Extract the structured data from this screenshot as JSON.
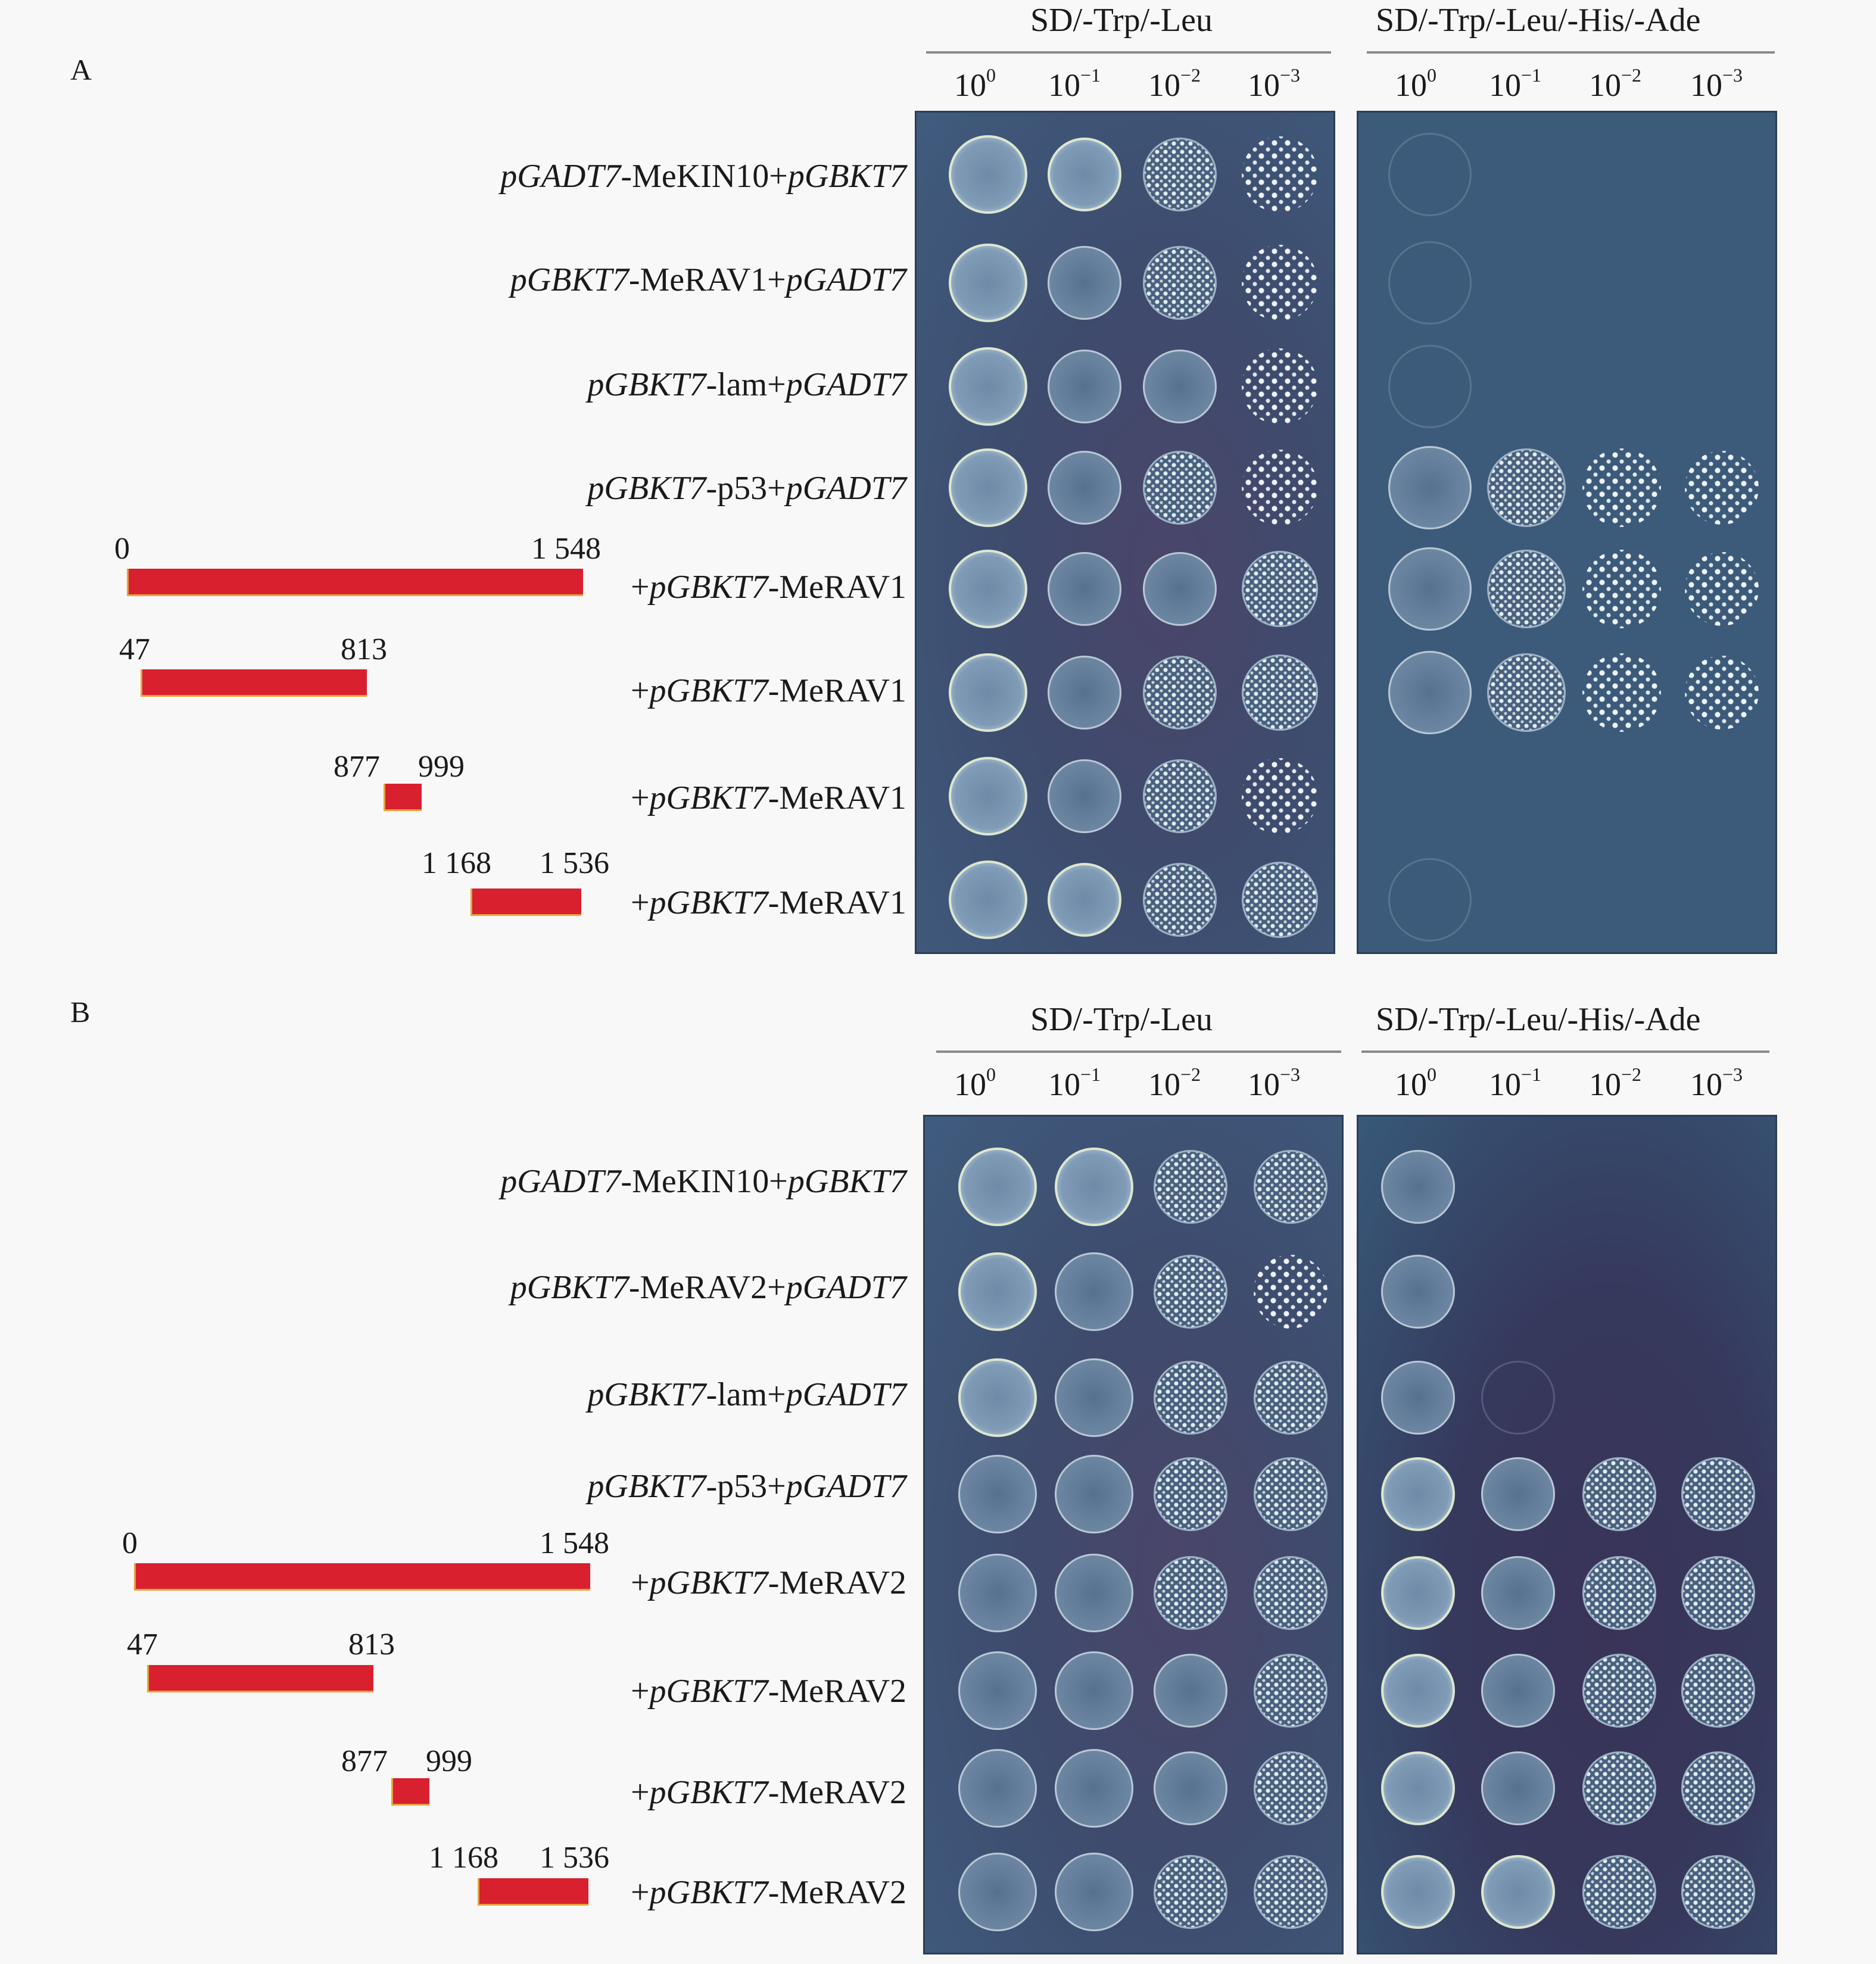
{
  "media": {
    "sd2": "SD/-Trp/-Leu",
    "sd4": "SD/-Trp/-Leu/-His/-Ade"
  },
  "dilutions": [
    {
      "base": "10",
      "exp": "0"
    },
    {
      "base": "10",
      "exp": "−1"
    },
    {
      "base": "10",
      "exp": "−2"
    },
    {
      "base": "10",
      "exp": "−3"
    }
  ],
  "panel_a": {
    "letter": "A",
    "controls": [
      {
        "italic1": "pGADT7",
        "plain": "-MeKIN10+",
        "italic2": "pGBKT7"
      },
      {
        "italic1": "pGBKT7",
        "plain": "-MeRAV1+",
        "italic2": "pGADT7"
      },
      {
        "italic1": "pGBKT7",
        "plain": "-lam+",
        "italic2": "pGADT7"
      },
      {
        "italic1": "pGBKT7",
        "plain": "-p53+",
        "italic2": "pGADT7"
      }
    ],
    "fragments": [
      {
        "start": "0",
        "end": "1 548",
        "prefix": "+",
        "italic": "pGBKT7",
        "suffix": "-MeRAV1"
      },
      {
        "start": "47",
        "end": "813",
        "prefix": "+",
        "italic": "pGBKT7",
        "suffix": "-MeRAV1"
      },
      {
        "start": "877",
        "end": "999",
        "prefix": "+",
        "italic": "pGBKT7",
        "suffix": "-MeRAV1"
      },
      {
        "start": "1 168",
        "end": "1 536",
        "prefix": "+",
        "italic": "pGBKT7",
        "suffix": "-MeRAV1"
      }
    ]
  },
  "panel_b": {
    "letter": "B",
    "controls": [
      {
        "italic1": "pGADT7",
        "plain": "-MeKIN10+",
        "italic2": "pGBKT7"
      },
      {
        "italic1": "pGBKT7",
        "plain": "-MeRAV2+",
        "italic2": "pGADT7"
      },
      {
        "italic1": "pGBKT7",
        "plain": "-lam+",
        "italic2": "pGADT7"
      },
      {
        "italic1": "pGBKT7",
        "plain": "-p53+",
        "italic2": "pGADT7"
      }
    ],
    "fragments": [
      {
        "start": "0",
        "end": "1 548",
        "prefix": "+",
        "italic": "pGBKT7",
        "suffix": "-MeRAV2"
      },
      {
        "start": "47",
        "end": "813",
        "prefix": "+",
        "italic": "pGBKT7",
        "suffix": "-MeRAV2"
      },
      {
        "start": "877",
        "end": "999",
        "prefix": "+",
        "italic": "pGBKT7",
        "suffix": "-MeRAV2"
      },
      {
        "start": "1 168",
        "end": "1 536",
        "prefix": "+",
        "italic": "pGBKT7",
        "suffix": "-MeRAV2"
      }
    ]
  },
  "colors": {
    "fragment_bar": "#d8202f",
    "plate": "#3c5a7a"
  }
}
